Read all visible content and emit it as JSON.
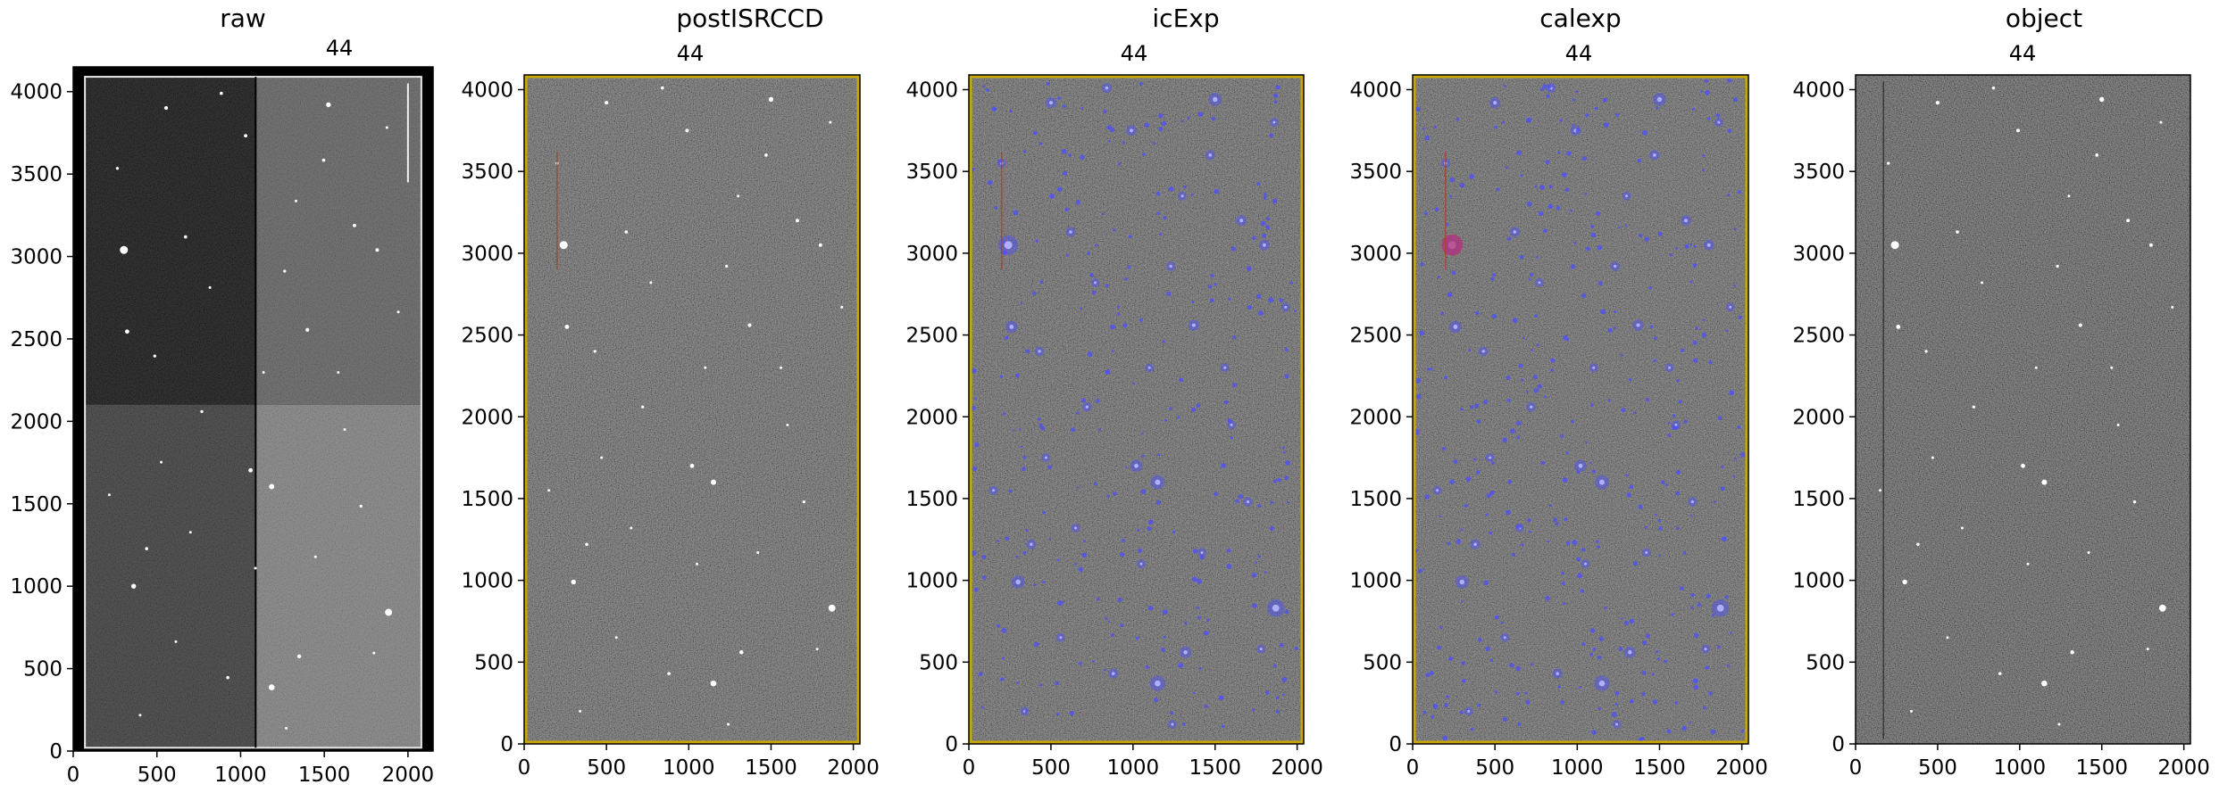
{
  "panels": [
    {
      "id": "raw",
      "title": "raw",
      "label": "44",
      "type": "raw"
    },
    {
      "id": "postISRCCD",
      "title": "postISRCCD",
      "label": "44",
      "type": "isr"
    },
    {
      "id": "icExp",
      "title": "icExp",
      "label": "44",
      "type": "icexp"
    },
    {
      "id": "calexp",
      "title": "calexp",
      "label": "44",
      "type": "calexp"
    },
    {
      "id": "object",
      "title": "object",
      "label": "44",
      "type": "object"
    }
  ],
  "axes": {
    "raw": {
      "xlim": [
        0,
        2150
      ],
      "ylim": [
        0,
        4150
      ],
      "xticks": [
        0,
        500,
        1000,
        1500,
        2000
      ],
      "yticks": [
        0,
        500,
        1000,
        1500,
        2000,
        2500,
        3000,
        3500,
        4000
      ]
    },
    "standard": {
      "xlim": [
        0,
        2040
      ],
      "ylim": [
        0,
        4090
      ],
      "xticks": [
        0,
        500,
        1000,
        1500,
        2000
      ],
      "yticks": [
        0,
        500,
        1000,
        1500,
        2000,
        2500,
        3000,
        3500,
        4000
      ]
    }
  },
  "colors": {
    "frame_border": "#c8a800",
    "detection_mask": "#4d4dff",
    "saturated_mask": "#c0306a",
    "edge_line": "#b04020"
  },
  "stars": [
    [
      240,
      3050,
      3
    ],
    [
      1870,
      830,
      2.6
    ],
    [
      1150,
      370,
      2.2
    ],
    [
      1150,
      1600,
      2
    ],
    [
      1500,
      3940,
      1.8
    ],
    [
      1020,
      1700,
      1.6
    ],
    [
      500,
      3920,
      1.4
    ],
    [
      260,
      2550,
      1.6
    ],
    [
      300,
      990,
      1.8
    ],
    [
      1320,
      560,
      1.5
    ],
    [
      1370,
      2560,
      1.4
    ],
    [
      990,
      3750,
      1.3
    ],
    [
      620,
      3130,
      1.2
    ],
    [
      1660,
      3200,
      1.3
    ],
    [
      840,
      4010,
      1.2
    ],
    [
      1470,
      3600,
      1.2
    ],
    [
      1800,
      3050,
      1.3
    ],
    [
      200,
      3550,
      1.1
    ],
    [
      430,
      2400,
      1.1
    ],
    [
      720,
      2060,
      1.1
    ],
    [
      1230,
      2920,
      1.1
    ],
    [
      1700,
      1480,
      1.1
    ],
    [
      1560,
      2300,
      1.0
    ],
    [
      380,
      1220,
      1.2
    ],
    [
      880,
      430,
      1.2
    ],
    [
      1420,
      1170,
      1.0
    ],
    [
      650,
      1320,
      1.0
    ],
    [
      1100,
      2300,
      1.0
    ],
    [
      1930,
      2670,
      1.0
    ],
    [
      340,
      200,
      1.0
    ],
    [
      1780,
      580,
      1.0
    ],
    [
      560,
      650,
      1.0
    ],
    [
      1300,
      3350,
      1.0
    ],
    [
      770,
      2820,
      1.0
    ],
    [
      1600,
      1950,
      1.0
    ],
    [
      150,
      1550,
      1.0
    ],
    [
      1050,
      1100,
      1.0
    ],
    [
      1860,
      3800,
      1.0
    ],
    [
      470,
      1750,
      1.0
    ],
    [
      1240,
      120,
      1.0
    ]
  ]
}
